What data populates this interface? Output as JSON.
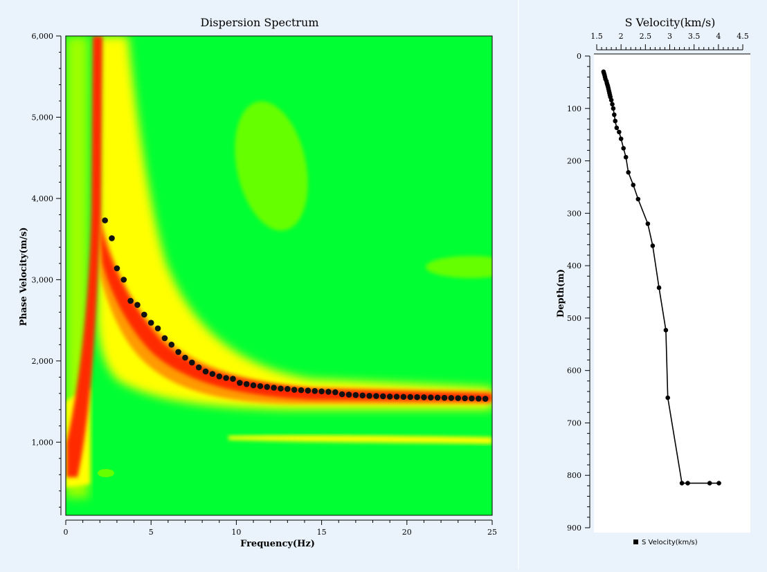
{
  "chart_data": [
    {
      "type": "heatmap",
      "title": "Dispersion Spectrum",
      "xlabel": "Frequency(Hz)",
      "ylabel": "Phase Velocity(m/s)",
      "xlim": [
        0,
        25
      ],
      "ylim": [
        100,
        6000
      ],
      "xticks": [
        0,
        5,
        10,
        15,
        20,
        25
      ],
      "yticks": [
        1000,
        2000,
        3000,
        4000,
        5000,
        6000
      ],
      "ytick_labels": [
        "1,000",
        "2,000",
        "3,000",
        "4,000",
        "5,000",
        "6,000"
      ],
      "colors": {
        "background": "#00ff33",
        "low": "#8cff00",
        "mid": "#ffff00",
        "high": "#ff2200"
      },
      "picked_points": {
        "x": [
          2.3,
          2.7,
          3.0,
          3.4,
          3.8,
          4.2,
          4.6,
          5.0,
          5.4,
          5.8,
          6.2,
          6.6,
          7.0,
          7.4,
          7.8,
          8.2,
          8.6,
          9.0,
          9.4,
          9.8,
          10.2,
          10.6,
          11.0,
          11.4,
          11.8,
          12.2,
          12.6,
          13.0,
          13.4,
          13.8,
          14.2,
          14.6,
          15.0,
          15.4,
          15.8,
          16.2,
          16.6,
          17.0,
          17.4,
          17.8,
          18.2,
          18.6,
          19.0,
          19.4,
          19.8,
          20.2,
          20.6,
          21.0,
          21.4,
          21.8,
          22.2,
          22.6,
          23.0,
          23.4,
          23.8,
          24.2,
          24.6
        ],
        "y": [
          3730,
          3510,
          3140,
          3000,
          2740,
          2690,
          2570,
          2470,
          2400,
          2280,
          2200,
          2110,
          2040,
          1980,
          1920,
          1870,
          1840,
          1810,
          1790,
          1780,
          1730,
          1715,
          1700,
          1690,
          1680,
          1670,
          1660,
          1655,
          1645,
          1640,
          1635,
          1630,
          1625,
          1620,
          1615,
          1590,
          1585,
          1580,
          1575,
          1570,
          1568,
          1565,
          1562,
          1560,
          1558,
          1556,
          1554,
          1552,
          1550,
          1548,
          1546,
          1544,
          1542,
          1540,
          1538,
          1536,
          1534
        ]
      }
    },
    {
      "type": "line",
      "title": "S Velocity(km/s)",
      "xlabel": "",
      "ylabel": "Depth(m)",
      "xlim": [
        1.5,
        4.5
      ],
      "ylim": [
        0,
        900
      ],
      "xticks": [
        1.5,
        2,
        2.5,
        3,
        3.5,
        4,
        4.5
      ],
      "xtick_labels": [
        "1.5",
        "2",
        "2.5",
        "3",
        "3.5",
        "4",
        "4.5"
      ],
      "yticks": [
        0,
        100,
        200,
        300,
        400,
        500,
        600,
        700,
        800,
        900
      ],
      "legend": "bottom",
      "series": [
        {
          "name": "S Velocity(km/s)",
          "x": [
            1.64,
            1.65,
            1.66,
            1.67,
            1.68,
            1.7,
            1.71,
            1.72,
            1.73,
            1.74,
            1.75,
            1.76,
            1.77,
            1.78,
            1.8,
            1.82,
            1.84,
            1.86,
            1.88,
            1.91,
            1.96,
            2.0,
            2.05,
            2.1,
            2.15,
            2.25,
            2.35,
            2.55,
            2.65,
            2.78,
            2.92,
            2.96,
            3.25,
            3.37,
            3.82,
            4.01
          ],
          "y": [
            30,
            33,
            36,
            40,
            44,
            48,
            52,
            55,
            58,
            62,
            66,
            70,
            74,
            78,
            84,
            92,
            100,
            112,
            124,
            137,
            145,
            158,
            176,
            193,
            222,
            246,
            273,
            320,
            362,
            442,
            523,
            652,
            815,
            815,
            815,
            815
          ]
        }
      ]
    }
  ]
}
